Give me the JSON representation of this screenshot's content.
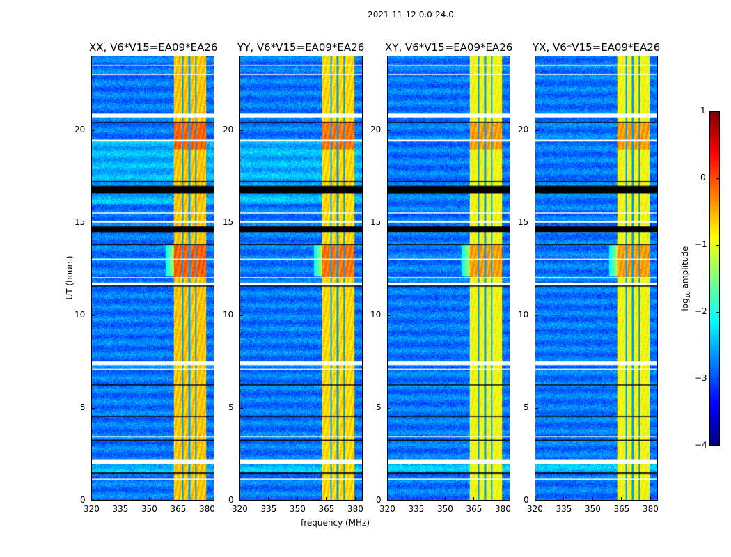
{
  "chart_data": {
    "type": "heatmap",
    "title": "2021-11-12 0.0-24.0",
    "xlabel": "frequency (MHz)",
    "ylabel": "UT (hours)",
    "xlim": [
      320,
      384
    ],
    "ylim": [
      0,
      24
    ],
    "xticks": [
      "320",
      "335",
      "350",
      "365",
      "380"
    ],
    "xtick_values": [
      320,
      335,
      350,
      365,
      380
    ],
    "yticks": [
      "0",
      "5",
      "10",
      "15",
      "20"
    ],
    "ytick_values": [
      0,
      5,
      10,
      15,
      20
    ],
    "panels": [
      {
        "title": "XX, V6*V15=EA09*EA26",
        "band_level": -0.6
      },
      {
        "title": "YY, V6*V15=EA09*EA26",
        "band_level": -0.7
      },
      {
        "title": "XY, V6*V15=EA09*EA26",
        "band_level": -0.9
      },
      {
        "title": "YX, V6*V15=EA09*EA26",
        "band_level": -0.9
      }
    ],
    "background_level": -2.8,
    "rfi_band_mhz": [
      363,
      380
    ],
    "flagged_white_hours": [
      [
        1.95,
        2.2
      ],
      [
        1.1,
        1.15
      ],
      [
        3.4,
        3.45
      ],
      [
        7.3,
        7.5
      ],
      [
        7.05,
        7.1
      ],
      [
        11.6,
        11.75
      ],
      [
        12.0,
        12.05
      ],
      [
        13.0,
        13.05
      ],
      [
        15.0,
        15.1
      ],
      [
        15.5,
        15.55
      ],
      [
        19.4,
        19.5
      ],
      [
        20.7,
        20.9
      ],
      [
        23.0,
        23.05
      ],
      [
        23.5,
        23.55
      ]
    ],
    "flagged_black_hours": [
      [
        1.4,
        1.5
      ],
      [
        6.2,
        6.25
      ],
      [
        4.5,
        4.55
      ],
      [
        3.2,
        3.25
      ],
      [
        14.5,
        14.8
      ],
      [
        16.6,
        17.0
      ],
      [
        13.8,
        13.85
      ],
      [
        17.2,
        17.25
      ],
      [
        20.4,
        20.45
      ],
      [
        11.55,
        11.6
      ]
    ],
    "colorbar": {
      "label": "log10 amplitude",
      "range": [
        -4,
        1
      ],
      "ticks": [
        "1",
        "0",
        "−1",
        "−2",
        "−3",
        "−4"
      ],
      "tick_values": [
        1,
        0,
        -1,
        -2,
        -3,
        -4
      ],
      "colormap": "jet"
    }
  }
}
